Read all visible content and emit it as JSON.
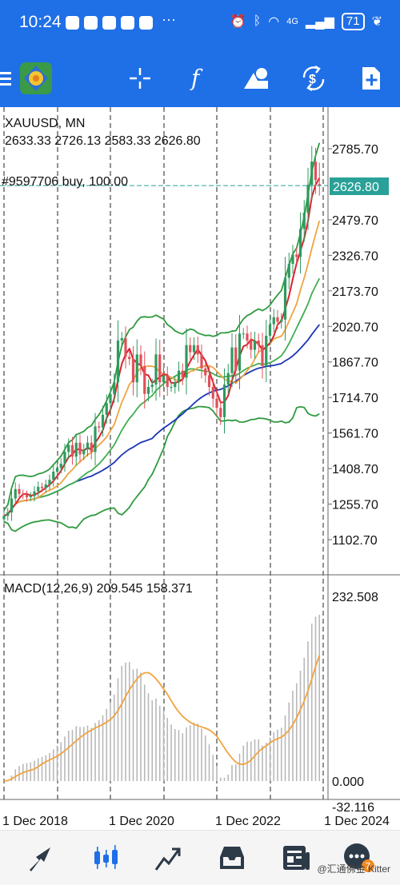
{
  "status_bar": {
    "time": "10:24",
    "network": "4G",
    "battery": "71",
    "more_dots": "···"
  },
  "toolbar": {
    "tools": [
      "menu-icon",
      "app-logo-icon",
      "crosshair-icon",
      "indicators-icon",
      "objects-icon",
      "timeframe-icon",
      "new-order-icon"
    ]
  },
  "chart": {
    "symbol_line": "XAUUSD, MN",
    "ohlc_line": "2633.33 2726.13 2583.33 2626.80",
    "position_label": "#9597706 buy, 100.00",
    "current_price": "2626.80",
    "price_ticks": [
      "2785.70",
      "2479.70",
      "2326.70",
      "2173.70",
      "2020.70",
      "1867.70",
      "1714.70",
      "1561.70",
      "1408.70",
      "1255.70",
      "1102.70"
    ],
    "macd_label": "MACD(12,26,9) 209.545 158.371",
    "macd_ticks": [
      "232.508",
      "0.000",
      "-32.116"
    ],
    "date_labels": [
      "1 Dec 2018",
      "1 Dec 2020",
      "1 Dec 2022",
      "1 Dec 2024"
    ],
    "colors": {
      "bull": "#2e9a5e",
      "bear": "#e0505a",
      "ma_red": "#d9232e",
      "ma_orange": "#f0a340",
      "ma_green": "#3fae4f",
      "ma_blue": "#1c36b5",
      "bollinger": "#2e9a3e",
      "macd_signal": "#f0a340",
      "position_line": "#2aa198"
    }
  },
  "chart_data": [
    {
      "type": "candlestick",
      "title": "XAUUSD, MN",
      "interval": "monthly",
      "ylim": [
        1050,
        2850
      ],
      "y_ticks": [
        2785.7,
        2479.7,
        2326.7,
        2173.7,
        2020.7,
        1867.7,
        1714.7,
        1561.7,
        1408.7,
        1255.7,
        1102.7
      ],
      "x_ticks": [
        "1 Dec 2018",
        "1 Dec 2020",
        "1 Dec 2022",
        "1 Dec 2024"
      ],
      "approx_monthly_close": [
        1205,
        1220,
        1280,
        1320,
        1300,
        1295,
        1285,
        1290,
        1310,
        1330,
        1325,
        1340,
        1360,
        1395,
        1412,
        1430,
        1480,
        1510,
        1460,
        1520,
        1470,
        1490,
        1520,
        1480,
        1590,
        1585,
        1640,
        1690,
        1730,
        1780,
        1960,
        1970,
        1890,
        1880,
        1780,
        1900,
        1850,
        1730,
        1760,
        1770,
        1900,
        1780,
        1810,
        1760,
        1760,
        1780,
        1830,
        1800,
        1940,
        1910,
        1940,
        1900,
        1840,
        1810,
        1760,
        1710,
        1670,
        1630,
        1770,
        1820,
        1930,
        1830,
        1990,
        1990,
        1960,
        1920,
        1960,
        1940,
        1850,
        1980,
        2030,
        2060,
        2040,
        2050,
        2230,
        2290,
        2330,
        2320,
        2440,
        2510,
        2630,
        2730,
        2650,
        2627
      ],
      "last_candle": {
        "open": 2633.33,
        "high": 2726.13,
        "low": 2583.33,
        "close": 2626.8
      },
      "overlays": [
        "moving averages (red, orange, green, blue)",
        "Bollinger bands"
      ],
      "grid": "vertical dashed at year markers",
      "current_price_line": 2626.8
    },
    {
      "type": "bar",
      "title": "MACD(12,26,9) 209.545 158.371",
      "macd": 209.545,
      "signal": 158.371,
      "ylim": [
        -32.116,
        232.508
      ],
      "y_ticks": [
        232.508,
        0.0,
        -32.116
      ]
    }
  ],
  "bottom_nav": {
    "items": [
      "quotes-icon",
      "chart-icon",
      "trade-icon",
      "history-icon",
      "news-icon",
      "messages-icon"
    ],
    "active": "chart-icon",
    "badge": "7"
  },
  "watermark": "@汇通佛金 Kitter"
}
